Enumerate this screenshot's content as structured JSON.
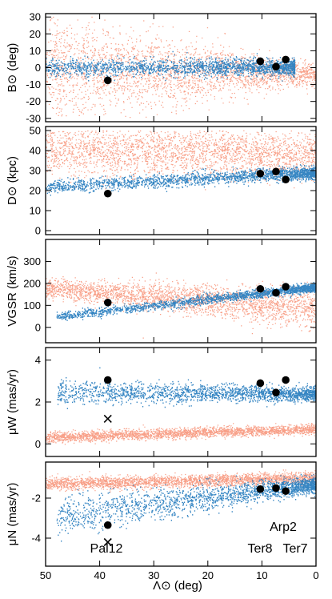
{
  "chart_data": [
    {
      "type": "scatter",
      "panel": "B",
      "ylabel": "B⊙ (deg)",
      "ylim": [
        -32,
        32
      ],
      "yticks": [
        -30,
        -20,
        -10,
        0,
        10,
        20,
        30
      ],
      "clusters": [
        {
          "x": 38.5,
          "y": -7.5
        },
        {
          "x": 10.3,
          "y": 3.8
        },
        {
          "x": 7.4,
          "y": 0.6
        },
        {
          "x": 5.6,
          "y": 4.8
        }
      ]
    },
    {
      "type": "scatter",
      "panel": "D",
      "ylabel": "D⊙ (kpc)",
      "ylim": [
        -2,
        52
      ],
      "yticks": [
        0,
        10,
        20,
        30,
        40,
        50
      ],
      "clusters": [
        {
          "x": 38.5,
          "y": 18.5
        },
        {
          "x": 10.3,
          "y": 28.5
        },
        {
          "x": 7.4,
          "y": 29.5
        },
        {
          "x": 5.6,
          "y": 25.5
        }
      ]
    },
    {
      "type": "scatter",
      "panel": "V",
      "ylabel": "VGSR (km/s)",
      "ylim": [
        -70,
        400
      ],
      "yticks": [
        0,
        100,
        200,
        300
      ],
      "clusters": [
        {
          "x": 38.5,
          "y": 113
        },
        {
          "x": 10.3,
          "y": 175
        },
        {
          "x": 7.4,
          "y": 157
        },
        {
          "x": 5.6,
          "y": 185
        }
      ]
    },
    {
      "type": "scatter",
      "panel": "muW",
      "ylabel": "μW (mas/yr)",
      "ylim": [
        -0.6,
        4.6
      ],
      "yticks": [
        0,
        2,
        4
      ],
      "clusters": [
        {
          "x": 38.5,
          "y": 3.05
        },
        {
          "x": 10.3,
          "y": 2.9
        },
        {
          "x": 7.4,
          "y": 2.45
        },
        {
          "x": 5.6,
          "y": 3.05
        }
      ],
      "cross": {
        "x": 38.5,
        "y": 1.2
      }
    },
    {
      "type": "scatter",
      "panel": "muN",
      "ylabel": "μN (mas/yr)",
      "ylim": [
        -5.4,
        -0.2
      ],
      "yticks": [
        -4,
        -2
      ],
      "clusters": [
        {
          "x": 38.5,
          "y": -3.35
        },
        {
          "x": 10.3,
          "y": -1.55
        },
        {
          "x": 7.4,
          "y": -1.5
        },
        {
          "x": 5.6,
          "y": -1.65
        }
      ],
      "cross": {
        "x": 38.5,
        "y": -4.2
      },
      "labels": [
        "Pal12",
        "Arp2",
        "Ter8",
        "Ter7"
      ],
      "xlabel": "Λ⊙ (deg)",
      "xlim": [
        50,
        0
      ],
      "xticks": [
        50,
        40,
        30,
        20,
        10,
        0
      ]
    }
  ],
  "colors": {
    "leading": "#2b7fc0",
    "trailing": "#f7957a",
    "cluster": "#000000"
  }
}
